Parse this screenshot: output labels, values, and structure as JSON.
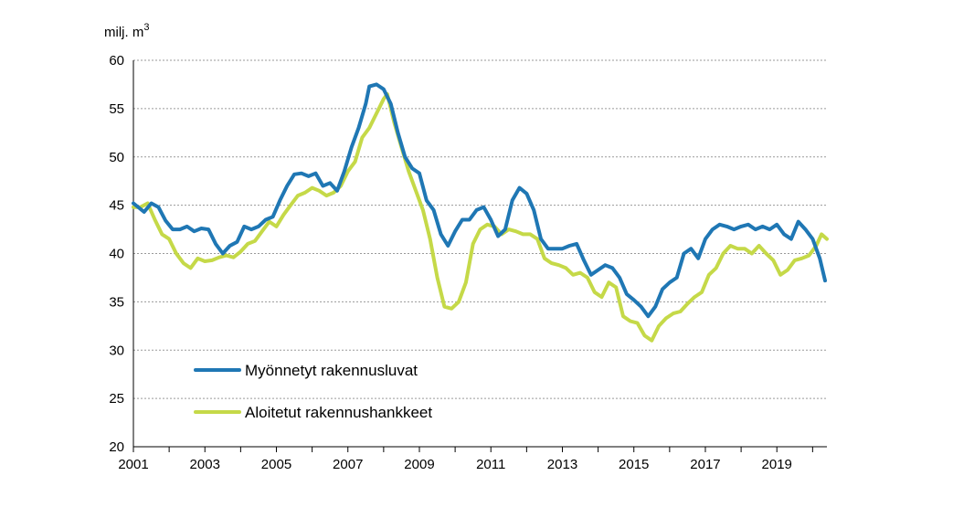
{
  "chart_data": {
    "type": "line",
    "unit_label": {
      "main": "milj. m",
      "sup": "3"
    },
    "ylim": [
      20,
      60
    ],
    "xlim": [
      2001.0,
      2020.4
    ],
    "y_ticks": [
      "20",
      "25",
      "30",
      "35",
      "40",
      "45",
      "50",
      "55",
      "60"
    ],
    "x_ticks": [
      "2001",
      "2003",
      "2005",
      "2007",
      "2009",
      "2011",
      "2013",
      "2015",
      "2017",
      "2019"
    ],
    "grid": true,
    "legend_placement": "lower-left inside plot",
    "series": [
      {
        "name": "Myönnetyt rakennusluvat",
        "color": "#1f77b4",
        "points": [
          [
            2001.0,
            45.2
          ],
          [
            2001.3,
            44.3
          ],
          [
            2001.5,
            45.2
          ],
          [
            2001.7,
            44.8
          ],
          [
            2001.9,
            43.4
          ],
          [
            2002.1,
            42.5
          ],
          [
            2002.3,
            42.5
          ],
          [
            2002.5,
            42.8
          ],
          [
            2002.7,
            42.3
          ],
          [
            2002.9,
            42.6
          ],
          [
            2003.1,
            42.5
          ],
          [
            2003.3,
            41.0
          ],
          [
            2003.5,
            40.0
          ],
          [
            2003.7,
            40.8
          ],
          [
            2003.9,
            41.2
          ],
          [
            2004.1,
            42.8
          ],
          [
            2004.3,
            42.5
          ],
          [
            2004.5,
            42.8
          ],
          [
            2004.7,
            43.5
          ],
          [
            2004.9,
            43.8
          ],
          [
            2005.1,
            45.5
          ],
          [
            2005.3,
            47.0
          ],
          [
            2005.5,
            48.2
          ],
          [
            2005.7,
            48.3
          ],
          [
            2005.9,
            48.0
          ],
          [
            2006.1,
            48.3
          ],
          [
            2006.3,
            47.0
          ],
          [
            2006.5,
            47.3
          ],
          [
            2006.7,
            46.5
          ],
          [
            2006.9,
            48.5
          ],
          [
            2007.1,
            51.0
          ],
          [
            2007.3,
            53.0
          ],
          [
            2007.5,
            55.5
          ],
          [
            2007.6,
            57.3
          ],
          [
            2007.8,
            57.5
          ],
          [
            2008.0,
            57.0
          ],
          [
            2008.2,
            55.5
          ],
          [
            2008.4,
            52.5
          ],
          [
            2008.6,
            50.0
          ],
          [
            2008.8,
            48.8
          ],
          [
            2009.0,
            48.3
          ],
          [
            2009.2,
            45.5
          ],
          [
            2009.4,
            44.5
          ],
          [
            2009.6,
            42.0
          ],
          [
            2009.8,
            40.8
          ],
          [
            2010.0,
            42.3
          ],
          [
            2010.2,
            43.5
          ],
          [
            2010.4,
            43.5
          ],
          [
            2010.6,
            44.5
          ],
          [
            2010.8,
            44.8
          ],
          [
            2011.0,
            43.5
          ],
          [
            2011.2,
            41.8
          ],
          [
            2011.4,
            42.5
          ],
          [
            2011.6,
            45.5
          ],
          [
            2011.8,
            46.8
          ],
          [
            2012.0,
            46.2
          ],
          [
            2012.2,
            44.5
          ],
          [
            2012.4,
            41.5
          ],
          [
            2012.6,
            40.5
          ],
          [
            2012.8,
            40.5
          ],
          [
            2013.0,
            40.5
          ],
          [
            2013.2,
            40.8
          ],
          [
            2013.4,
            41.0
          ],
          [
            2013.6,
            39.3
          ],
          [
            2013.8,
            37.8
          ],
          [
            2014.0,
            38.3
          ],
          [
            2014.2,
            38.8
          ],
          [
            2014.4,
            38.5
          ],
          [
            2014.6,
            37.5
          ],
          [
            2014.8,
            35.8
          ],
          [
            2015.0,
            35.2
          ],
          [
            2015.2,
            34.5
          ],
          [
            2015.4,
            33.5
          ],
          [
            2015.6,
            34.5
          ],
          [
            2015.8,
            36.3
          ],
          [
            2016.0,
            37.0
          ],
          [
            2016.2,
            37.5
          ],
          [
            2016.4,
            40.0
          ],
          [
            2016.6,
            40.5
          ],
          [
            2016.8,
            39.5
          ],
          [
            2017.0,
            41.5
          ],
          [
            2017.2,
            42.5
          ],
          [
            2017.4,
            43.0
          ],
          [
            2017.6,
            42.8
          ],
          [
            2017.8,
            42.5
          ],
          [
            2018.0,
            42.8
          ],
          [
            2018.2,
            43.0
          ],
          [
            2018.4,
            42.5
          ],
          [
            2018.6,
            42.8
          ],
          [
            2018.8,
            42.5
          ],
          [
            2019.0,
            43.0
          ],
          [
            2019.2,
            42.0
          ],
          [
            2019.4,
            41.5
          ],
          [
            2019.6,
            43.3
          ],
          [
            2019.8,
            42.5
          ],
          [
            2020.0,
            41.5
          ],
          [
            2020.2,
            39.5
          ],
          [
            2020.35,
            37.2
          ]
        ]
      },
      {
        "name": "Aloitetut rakennushankkeet",
        "color": "#c5d948",
        "points": [
          [
            2001.0,
            44.8
          ],
          [
            2001.2,
            44.8
          ],
          [
            2001.4,
            45.2
          ],
          [
            2001.6,
            43.5
          ],
          [
            2001.8,
            42.0
          ],
          [
            2002.0,
            41.5
          ],
          [
            2002.2,
            40.0
          ],
          [
            2002.4,
            39.0
          ],
          [
            2002.6,
            38.5
          ],
          [
            2002.8,
            39.5
          ],
          [
            2003.0,
            39.2
          ],
          [
            2003.2,
            39.3
          ],
          [
            2003.4,
            39.6
          ],
          [
            2003.6,
            39.8
          ],
          [
            2003.8,
            39.6
          ],
          [
            2004.0,
            40.2
          ],
          [
            2004.2,
            41.0
          ],
          [
            2004.4,
            41.3
          ],
          [
            2004.6,
            42.3
          ],
          [
            2004.8,
            43.3
          ],
          [
            2005.0,
            42.8
          ],
          [
            2005.2,
            44.0
          ],
          [
            2005.4,
            45.0
          ],
          [
            2005.6,
            46.0
          ],
          [
            2005.8,
            46.3
          ],
          [
            2006.0,
            46.8
          ],
          [
            2006.2,
            46.5
          ],
          [
            2006.4,
            46.0
          ],
          [
            2006.6,
            46.3
          ],
          [
            2006.8,
            47.0
          ],
          [
            2007.0,
            48.5
          ],
          [
            2007.2,
            49.5
          ],
          [
            2007.4,
            52.0
          ],
          [
            2007.6,
            53.0
          ],
          [
            2007.8,
            54.5
          ],
          [
            2008.0,
            56.0
          ],
          [
            2008.1,
            56.5
          ],
          [
            2008.3,
            53.5
          ],
          [
            2008.5,
            51.0
          ],
          [
            2008.7,
            48.5
          ],
          [
            2008.9,
            46.5
          ],
          [
            2009.1,
            44.5
          ],
          [
            2009.3,
            41.5
          ],
          [
            2009.5,
            37.5
          ],
          [
            2009.7,
            34.5
          ],
          [
            2009.9,
            34.3
          ],
          [
            2010.1,
            35.0
          ],
          [
            2010.3,
            37.0
          ],
          [
            2010.5,
            41.0
          ],
          [
            2010.7,
            42.5
          ],
          [
            2010.9,
            43.0
          ],
          [
            2011.1,
            42.8
          ],
          [
            2011.3,
            42.0
          ],
          [
            2011.5,
            42.5
          ],
          [
            2011.7,
            42.3
          ],
          [
            2011.9,
            42.0
          ],
          [
            2012.1,
            42.0
          ],
          [
            2012.3,
            41.5
          ],
          [
            2012.5,
            39.5
          ],
          [
            2012.7,
            39.0
          ],
          [
            2012.9,
            38.8
          ],
          [
            2013.1,
            38.5
          ],
          [
            2013.3,
            37.8
          ],
          [
            2013.5,
            38.0
          ],
          [
            2013.7,
            37.5
          ],
          [
            2013.9,
            36.0
          ],
          [
            2014.1,
            35.5
          ],
          [
            2014.3,
            37.0
          ],
          [
            2014.5,
            36.5
          ],
          [
            2014.7,
            33.5
          ],
          [
            2014.9,
            33.0
          ],
          [
            2015.1,
            32.8
          ],
          [
            2015.3,
            31.5
          ],
          [
            2015.5,
            31.0
          ],
          [
            2015.7,
            32.5
          ],
          [
            2015.9,
            33.3
          ],
          [
            2016.1,
            33.8
          ],
          [
            2016.3,
            34.0
          ],
          [
            2016.5,
            34.8
          ],
          [
            2016.7,
            35.5
          ],
          [
            2016.9,
            36.0
          ],
          [
            2017.1,
            37.8
          ],
          [
            2017.3,
            38.5
          ],
          [
            2017.5,
            40.0
          ],
          [
            2017.7,
            40.8
          ],
          [
            2017.9,
            40.5
          ],
          [
            2018.1,
            40.5
          ],
          [
            2018.3,
            40.0
          ],
          [
            2018.5,
            40.8
          ],
          [
            2018.7,
            40.0
          ],
          [
            2018.9,
            39.3
          ],
          [
            2019.1,
            37.8
          ],
          [
            2019.3,
            38.3
          ],
          [
            2019.5,
            39.3
          ],
          [
            2019.7,
            39.5
          ],
          [
            2019.9,
            39.8
          ],
          [
            2020.1,
            40.8
          ],
          [
            2020.25,
            42.0
          ],
          [
            2020.4,
            41.5
          ]
        ]
      }
    ]
  }
}
